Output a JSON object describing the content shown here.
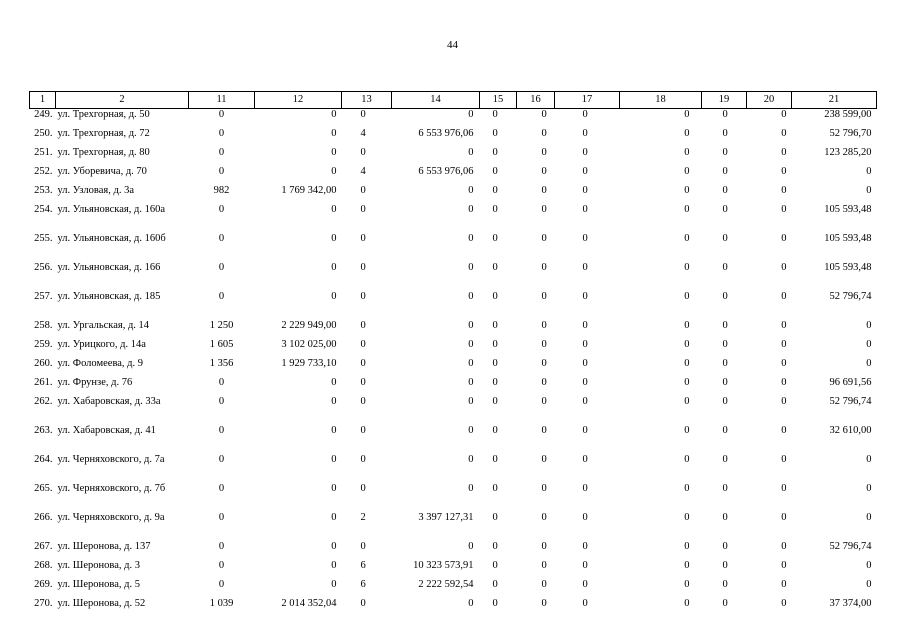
{
  "page_number": "44",
  "columns": [
    "1",
    "2",
    "11",
    "12",
    "13",
    "14",
    "15",
    "16",
    "17",
    "18",
    "19",
    "20",
    "21"
  ],
  "rows": [
    {
      "n": "249.",
      "addr": "ул. Трехгорная, д. 50",
      "c11": "0",
      "c12": "0",
      "c13": "0",
      "c14": "0",
      "c15": "0",
      "c16": "0",
      "c17": "0",
      "c18": "0",
      "c19": "0",
      "c20": "0",
      "c21": "238 599,00"
    },
    {
      "n": "250.",
      "addr": "ул. Трехгорная, д. 72",
      "c11": "0",
      "c12": "0",
      "c13": "4",
      "c14": "6 553 976,06",
      "c15": "0",
      "c16": "0",
      "c17": "0",
      "c18": "0",
      "c19": "0",
      "c20": "0",
      "c21": "52 796,70"
    },
    {
      "n": "251.",
      "addr": "ул. Трехгорная, д. 80",
      "c11": "0",
      "c12": "0",
      "c13": "0",
      "c14": "0",
      "c15": "0",
      "c16": "0",
      "c17": "0",
      "c18": "0",
      "c19": "0",
      "c20": "0",
      "c21": "123 285,20"
    },
    {
      "n": "252.",
      "addr": "ул. Уборевича, д. 70",
      "c11": "0",
      "c12": "0",
      "c13": "4",
      "c14": "6 553 976,06",
      "c15": "0",
      "c16": "0",
      "c17": "0",
      "c18": "0",
      "c19": "0",
      "c20": "0",
      "c21": "0"
    },
    {
      "n": "253.",
      "addr": "ул. Узловая, д. 3а",
      "c11": "982",
      "c12": "1 769 342,00",
      "c13": "0",
      "c14": "0",
      "c15": "0",
      "c16": "0",
      "c17": "0",
      "c18": "0",
      "c19": "0",
      "c20": "0",
      "c21": "0"
    },
    {
      "n": "254.",
      "addr": "ул. Ульяновская, д. 160а",
      "c11": "0",
      "c12": "0",
      "c13": "0",
      "c14": "0",
      "c15": "0",
      "c16": "0",
      "c17": "0",
      "c18": "0",
      "c19": "0",
      "c20": "0",
      "c21": "105 593,48"
    },
    {
      "n": "255.",
      "addr": "ул. Ульяновская, д. 160б",
      "c11": "0",
      "c12": "0",
      "c13": "0",
      "c14": "0",
      "c15": "0",
      "c16": "0",
      "c17": "0",
      "c18": "0",
      "c19": "0",
      "c20": "0",
      "c21": "105 593,48"
    },
    {
      "n": "256.",
      "addr": "ул. Ульяновская, д. 166",
      "c11": "0",
      "c12": "0",
      "c13": "0",
      "c14": "0",
      "c15": "0",
      "c16": "0",
      "c17": "0",
      "c18": "0",
      "c19": "0",
      "c20": "0",
      "c21": "105 593,48"
    },
    {
      "n": "257.",
      "addr": "ул. Ульяновская, д. 185",
      "c11": "0",
      "c12": "0",
      "c13": "0",
      "c14": "0",
      "c15": "0",
      "c16": "0",
      "c17": "0",
      "c18": "0",
      "c19": "0",
      "c20": "0",
      "c21": "52 796,74"
    },
    {
      "n": "258.",
      "addr": "ул. Ургальская, д. 14",
      "c11": "1 250",
      "c12": "2 229 949,00",
      "c13": "0",
      "c14": "0",
      "c15": "0",
      "c16": "0",
      "c17": "0",
      "c18": "0",
      "c19": "0",
      "c20": "0",
      "c21": "0"
    },
    {
      "n": "259.",
      "addr": "ул. Урицкого, д. 14а",
      "c11": "1 605",
      "c12": "3 102 025,00",
      "c13": "0",
      "c14": "0",
      "c15": "0",
      "c16": "0",
      "c17": "0",
      "c18": "0",
      "c19": "0",
      "c20": "0",
      "c21": "0"
    },
    {
      "n": "260.",
      "addr": "ул. Фоломеева, д. 9",
      "c11": "1 356",
      "c12": "1 929 733,10",
      "c13": "0",
      "c14": "0",
      "c15": "0",
      "c16": "0",
      "c17": "0",
      "c18": "0",
      "c19": "0",
      "c20": "0",
      "c21": "0"
    },
    {
      "n": "261.",
      "addr": "ул. Фрунзе, д. 76",
      "c11": "0",
      "c12": "0",
      "c13": "0",
      "c14": "0",
      "c15": "0",
      "c16": "0",
      "c17": "0",
      "c18": "0",
      "c19": "0",
      "c20": "0",
      "c21": "96 691,56"
    },
    {
      "n": "262.",
      "addr": "ул. Хабаровская, д. 33а",
      "c11": "0",
      "c12": "0",
      "c13": "0",
      "c14": "0",
      "c15": "0",
      "c16": "0",
      "c17": "0",
      "c18": "0",
      "c19": "0",
      "c20": "0",
      "c21": "52 796,74"
    },
    {
      "n": "263.",
      "addr": "ул. Хабаровская, д. 41",
      "c11": "0",
      "c12": "0",
      "c13": "0",
      "c14": "0",
      "c15": "0",
      "c16": "0",
      "c17": "0",
      "c18": "0",
      "c19": "0",
      "c20": "0",
      "c21": "32 610,00"
    },
    {
      "n": "264.",
      "addr": "ул. Черняховского, д. 7а",
      "c11": "0",
      "c12": "0",
      "c13": "0",
      "c14": "0",
      "c15": "0",
      "c16": "0",
      "c17": "0",
      "c18": "0",
      "c19": "0",
      "c20": "0",
      "c21": "0"
    },
    {
      "n": "265.",
      "addr": "ул. Черняховского, д. 7б",
      "c11": "0",
      "c12": "0",
      "c13": "0",
      "c14": "0",
      "c15": "0",
      "c16": "0",
      "c17": "0",
      "c18": "0",
      "c19": "0",
      "c20": "0",
      "c21": "0"
    },
    {
      "n": "266.",
      "addr": "ул. Черняховского, д. 9а",
      "c11": "0",
      "c12": "0",
      "c13": "2",
      "c14": "3 397 127,31",
      "c15": "0",
      "c16": "0",
      "c17": "0",
      "c18": "0",
      "c19": "0",
      "c20": "0",
      "c21": "0"
    },
    {
      "n": "267.",
      "addr": "ул. Шеронова, д. 137",
      "c11": "0",
      "c12": "0",
      "c13": "0",
      "c14": "0",
      "c15": "0",
      "c16": "0",
      "c17": "0",
      "c18": "0",
      "c19": "0",
      "c20": "0",
      "c21": "52 796,74"
    },
    {
      "n": "268.",
      "addr": "ул. Шеронова, д. 3",
      "c11": "0",
      "c12": "0",
      "c13": "6",
      "c14": "10 323 573,91",
      "c15": "0",
      "c16": "0",
      "c17": "0",
      "c18": "0",
      "c19": "0",
      "c20": "0",
      "c21": "0"
    },
    {
      "n": "269.",
      "addr": "ул. Шеронова, д. 5",
      "c11": "0",
      "c12": "0",
      "c13": "6",
      "c14": "2 222 592,54",
      "c15": "0",
      "c16": "0",
      "c17": "0",
      "c18": "0",
      "c19": "0",
      "c20": "0",
      "c21": "0"
    },
    {
      "n": "270.",
      "addr": "ул. Шеронова, д. 52",
      "c11": "1 039",
      "c12": "2 014 352,04",
      "c13": "0",
      "c14": "0",
      "c15": "0",
      "c16": "0",
      "c17": "0",
      "c18": "0",
      "c19": "0",
      "c20": "0",
      "c21": "37 374,00"
    }
  ]
}
